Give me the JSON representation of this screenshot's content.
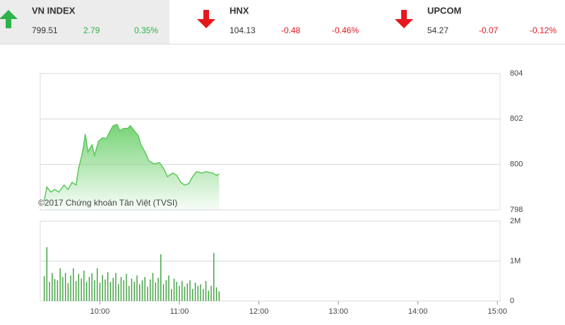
{
  "header": {
    "indices": [
      {
        "name": "VN INDEX",
        "value": "799.51",
        "change": "2.79",
        "percent": "0.35%",
        "direction": "up",
        "color": "#2db34a",
        "highlighted": true
      },
      {
        "name": "HNX",
        "value": "104.13",
        "change": "-0.48",
        "percent": "-0.46%",
        "direction": "down",
        "color": "#e5181e",
        "highlighted": false
      },
      {
        "name": "UPCOM",
        "value": "54.27",
        "change": "-0.07",
        "percent": "-0.12%",
        "direction": "down",
        "color": "#e5181e",
        "highlighted": false
      }
    ]
  },
  "chart_data": [
    {
      "type": "area",
      "annotation": "©2017 Chứng khoán Tân Việt (TVSI)",
      "color": "#6fd16f",
      "x": [
        558,
        560,
        563,
        566,
        569,
        573,
        576,
        579,
        582,
        584,
        587,
        589,
        591,
        594,
        596,
        599,
        602,
        605,
        607,
        610,
        613,
        615,
        618,
        621,
        623,
        626,
        629,
        631,
        634,
        637,
        641,
        645,
        648,
        651,
        655,
        658,
        661,
        664,
        667,
        670,
        673,
        677,
        680,
        685,
        688,
        690
      ],
      "values": [
        798.4,
        799.0,
        798.78,
        798.9,
        798.78,
        799.09,
        798.9,
        799.21,
        799.09,
        799.84,
        800.55,
        801.33,
        800.55,
        800.86,
        800.39,
        801.02,
        801.17,
        801.14,
        801.39,
        801.7,
        801.76,
        801.48,
        801.58,
        801.58,
        801.7,
        801.48,
        801.26,
        800.86,
        800.55,
        800.15,
        800.02,
        800.08,
        799.83,
        799.46,
        799.62,
        799.52,
        799.21,
        799.09,
        799.15,
        799.46,
        799.68,
        799.62,
        799.68,
        799.62,
        799.52,
        799.58
      ],
      "xlim": [
        555,
        902
      ],
      "ylim": [
        798,
        804
      ],
      "yticks": [
        798,
        800,
        802,
        804
      ],
      "grid": true
    },
    {
      "type": "bar",
      "color": "#3a9e3a",
      "x": [
        558,
        560,
        562,
        564,
        566,
        568,
        570,
        572,
        574,
        576,
        578,
        580,
        582,
        584,
        586,
        588,
        590,
        592,
        594,
        596,
        598,
        600,
        602,
        604,
        606,
        608,
        610,
        612,
        614,
        616,
        618,
        620,
        622,
        624,
        626,
        628,
        630,
        632,
        634,
        636,
        638,
        640,
        642,
        644,
        646,
        648,
        650,
        652,
        654,
        656,
        658,
        660,
        662,
        664,
        666,
        668,
        670,
        672,
        674,
        676,
        678,
        680,
        682,
        684,
        686,
        688,
        690
      ],
      "values": [
        620000,
        1350000,
        480000,
        700000,
        550000,
        520000,
        820000,
        600000,
        700000,
        450000,
        640000,
        820000,
        500000,
        680000,
        560000,
        760000,
        480000,
        600000,
        700000,
        520000,
        820000,
        460000,
        650000,
        540000,
        720000,
        480000,
        580000,
        700000,
        420000,
        600000,
        520000,
        680000,
        380000,
        560000,
        480000,
        640000,
        420000,
        520000,
        600000,
        360000,
        540000,
        700000,
        460000,
        580000,
        1170000,
        420000,
        520000,
        640000,
        300000,
        560000,
        480000,
        380000,
        500000,
        360000,
        440000,
        520000,
        300000,
        460000,
        380000,
        420000,
        300000,
        500000,
        260000,
        380000,
        1200000,
        340000,
        240000
      ],
      "xlim": [
        555,
        902
      ],
      "ylim": [
        0,
        2000000
      ],
      "yticks": [
        0,
        {
          "value": 1000000,
          "label": "1M"
        },
        {
          "value": 2000000,
          "label": "2M"
        }
      ],
      "xticks": [
        {
          "value": 600,
          "label": "10:00"
        },
        {
          "value": 660,
          "label": "11:00"
        },
        {
          "value": 720,
          "label": "12:00"
        },
        {
          "value": 780,
          "label": "13:00"
        },
        {
          "value": 840,
          "label": "14:00"
        },
        {
          "value": 900,
          "label": "15:00"
        }
      ],
      "grid": true
    }
  ]
}
